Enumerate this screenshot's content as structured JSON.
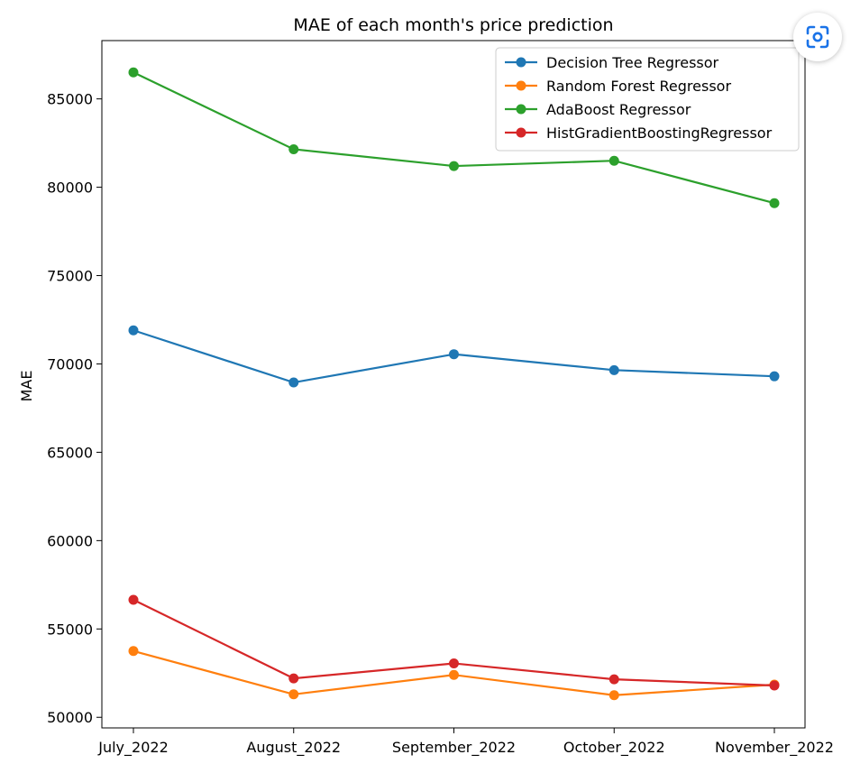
{
  "chart_data": {
    "type": "line",
    "title": "MAE of each month's price prediction",
    "xlabel": "",
    "ylabel": "MAE",
    "categories": [
      "July_2022",
      "August_2022",
      "September_2022",
      "October_2022",
      "November_2022"
    ],
    "ylim": [
      49400,
      88300
    ],
    "yticks": [
      50000,
      55000,
      60000,
      65000,
      70000,
      75000,
      80000,
      85000
    ],
    "grid": false,
    "legend_position": "top-right",
    "series": [
      {
        "name": "Decision Tree Regressor",
        "color": "#1f77b4",
        "values": [
          71900,
          68950,
          70550,
          69650,
          69300
        ]
      },
      {
        "name": "Random Forest Regressor",
        "color": "#ff7f0e",
        "values": [
          53750,
          51300,
          52400,
          51250,
          51850
        ]
      },
      {
        "name": "AdaBoost Regressor",
        "color": "#2ca02c",
        "values": [
          86500,
          82150,
          81200,
          81500,
          79100
        ]
      },
      {
        "name": "HistGradientBoostingRegressor",
        "color": "#d62728",
        "values": [
          56650,
          52200,
          53050,
          52150,
          51800
        ]
      }
    ]
  },
  "overlay": {
    "lens_icon": "visual-search-icon",
    "lens_icon_color": "#1a73e8"
  }
}
